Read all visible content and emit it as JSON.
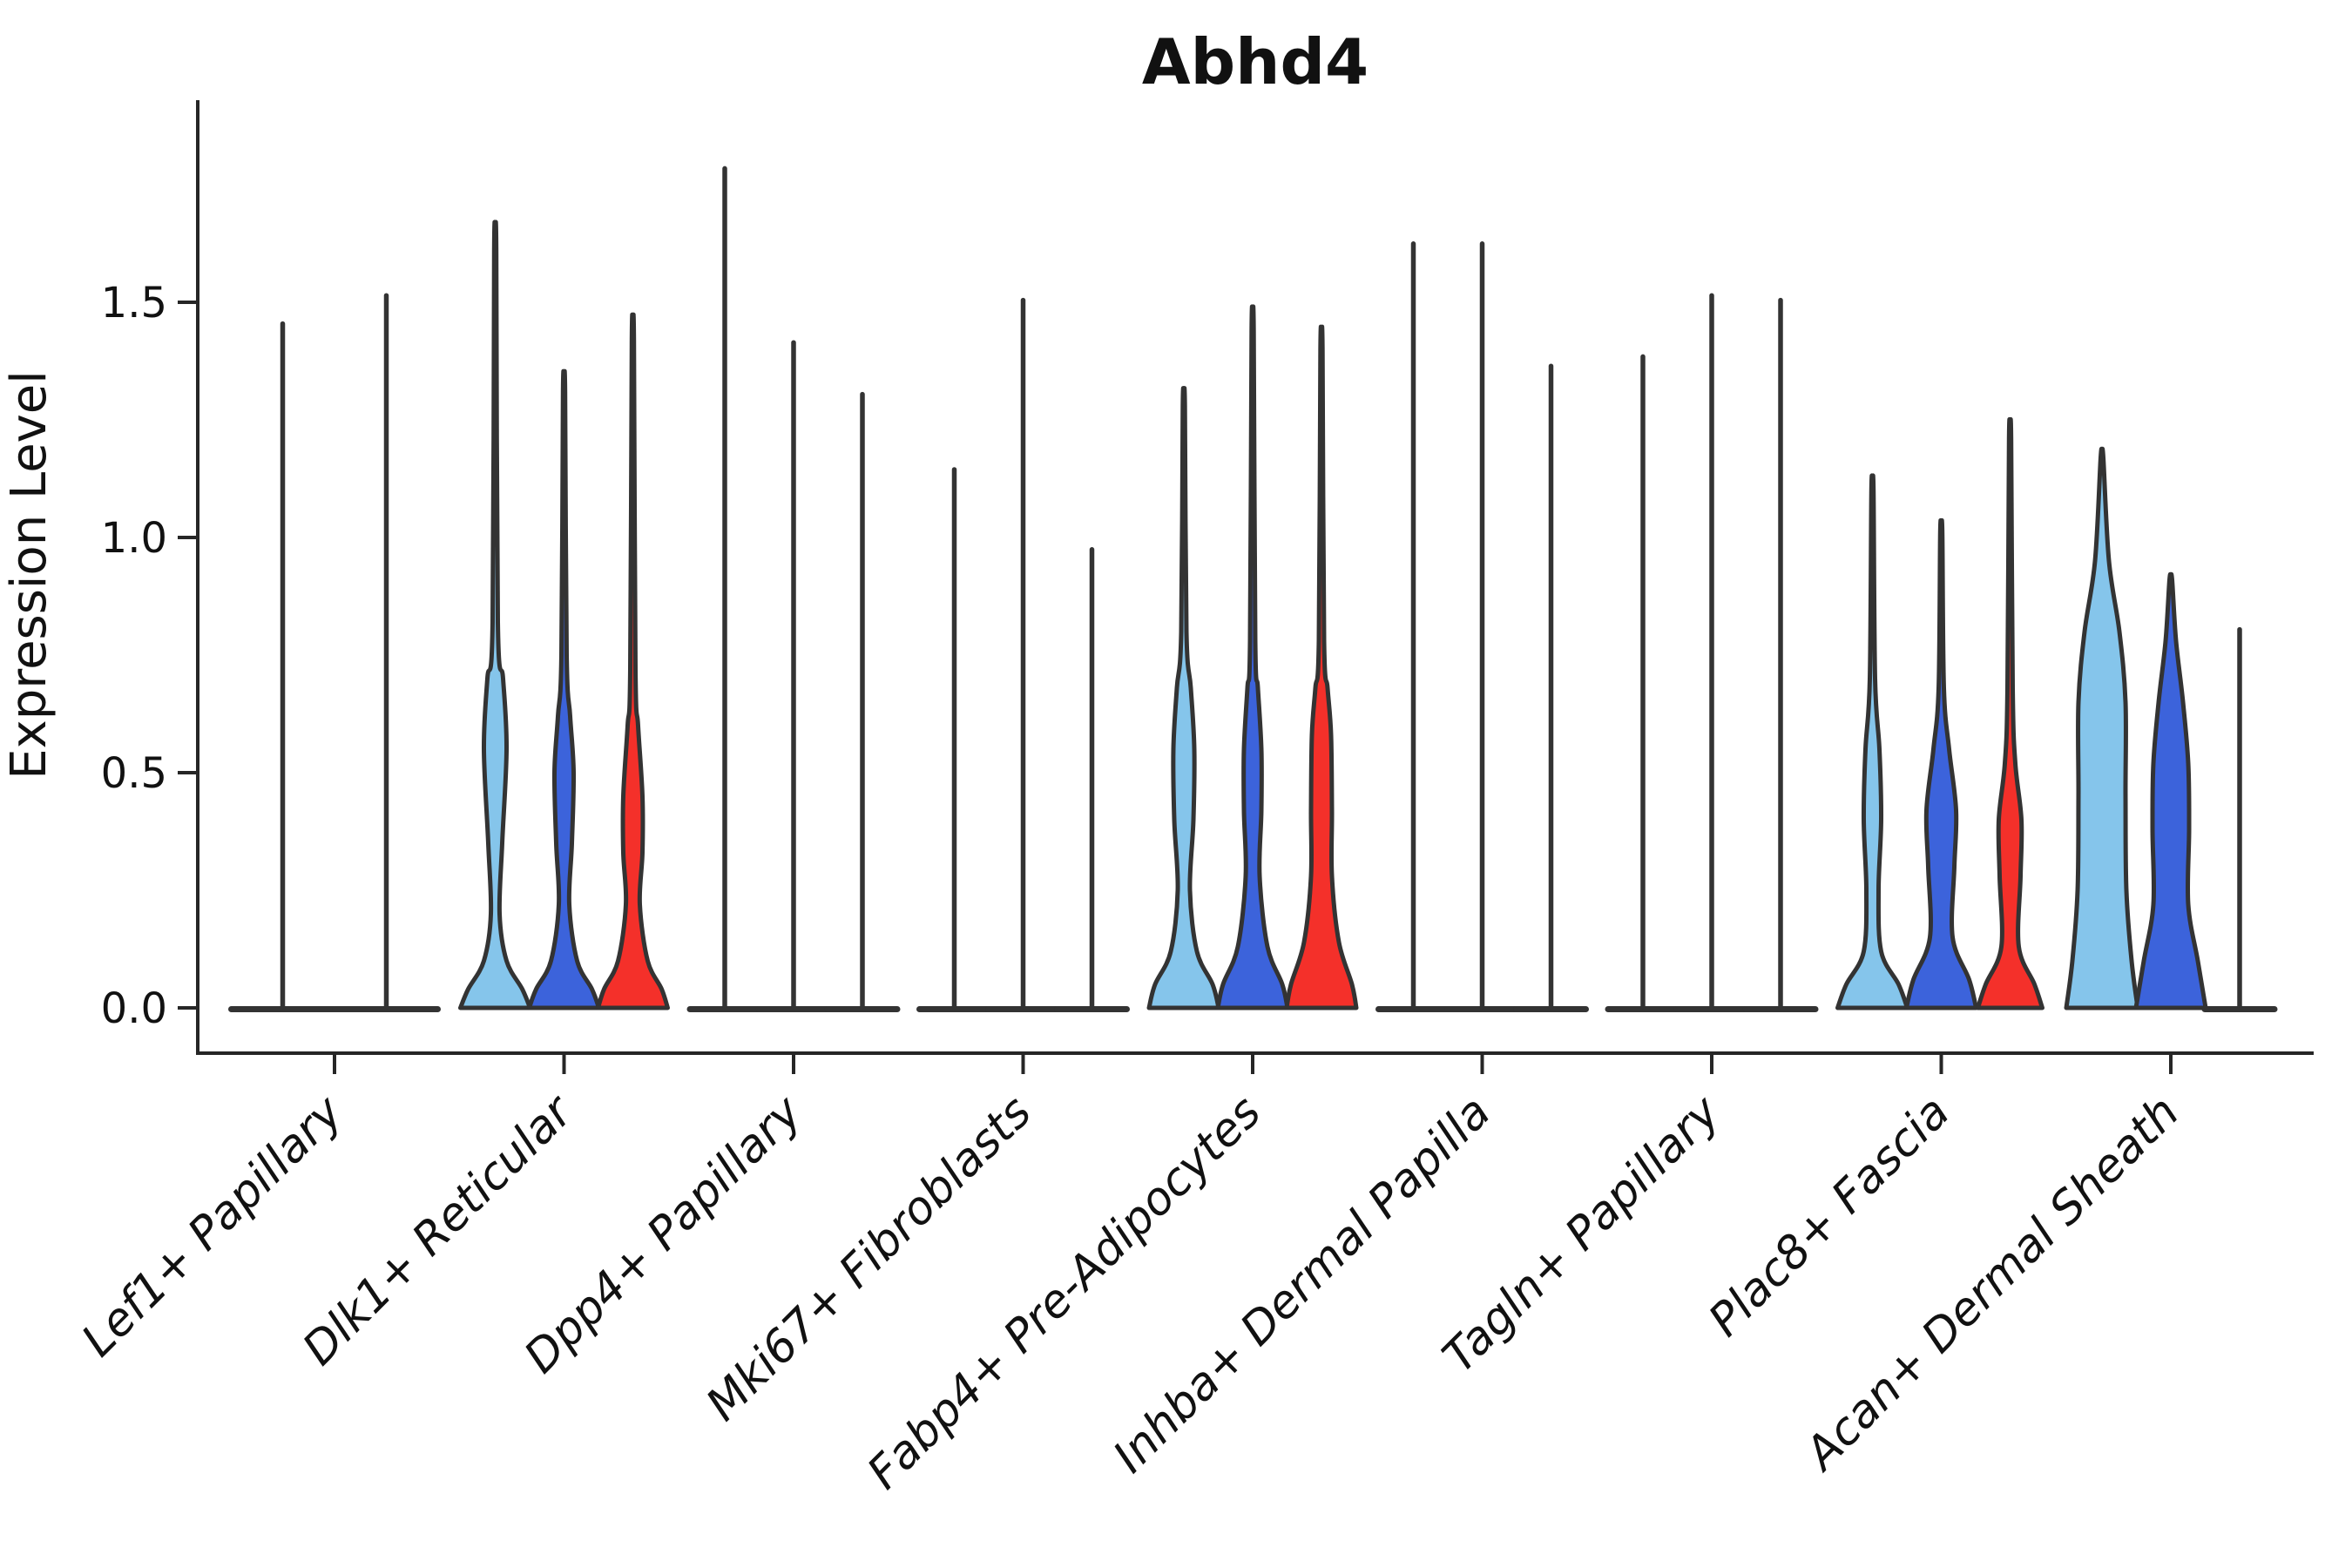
{
  "title": "Abhd4",
  "axes": {
    "ylabel": "Expression Level",
    "xlabel": "",
    "axis_color": "#262626",
    "yticks": [
      {
        "v": 0.0,
        "label": "0.0"
      },
      {
        "v": 0.5,
        "label": "0.5"
      },
      {
        "v": 1.0,
        "label": "1.0"
      },
      {
        "v": 1.5,
        "label": "1.5"
      }
    ]
  },
  "chart_data": {
    "type": "violin",
    "title": "Abhd4",
    "xlabel": "",
    "ylabel": "Expression Level",
    "ylim": [
      -0.09,
      1.93
    ],
    "yticks": [
      0,
      0.5,
      1.0,
      1.5
    ],
    "grid": false,
    "legend": "none",
    "x_label_rotation": 45,
    "x_label_style": "italic",
    "outline": "#333333",
    "palette": {
      "lightblue": "#85C5EB",
      "blue": "#3C63DB",
      "red": "#F4302A"
    },
    "note_units": "max = top of density spike in Expression Level units; profile = [expression, half-width px] density outline control points; violins with profile null collapse to a near-zero base with a thin spike",
    "categories": [
      {
        "label": "Lef1+ Papillary",
        "violins": [
          {
            "color": "lightblue",
            "max": 1.46,
            "profile": null
          },
          {
            "color": "blue",
            "max": 1.52,
            "profile": null
          }
        ]
      },
      {
        "label": "Dlk1+ Reticular",
        "violins": [
          {
            "color": "lightblue",
            "max": 1.61,
            "profile": [
              [
                0,
                40
              ],
              [
                0.04,
                31
              ],
              [
                0.1,
                13
              ],
              [
                0.2,
                5
              ],
              [
                0.35,
                8
              ],
              [
                0.55,
                13
              ],
              [
                0.7,
                9
              ],
              [
                0.82,
                3
              ],
              [
                1.61,
                1.2
              ]
            ]
          },
          {
            "color": "blue",
            "max": 1.31,
            "profile": [
              [
                0,
                40
              ],
              [
                0.04,
                32
              ],
              [
                0.1,
                15
              ],
              [
                0.22,
                6
              ],
              [
                0.35,
                9
              ],
              [
                0.5,
                11
              ],
              [
                0.62,
                7
              ],
              [
                0.75,
                3
              ],
              [
                1.31,
                1.2
              ]
            ]
          },
          {
            "color": "red",
            "max": 1.42,
            "profile": [
              [
                0,
                40
              ],
              [
                0.04,
                33
              ],
              [
                0.1,
                17
              ],
              [
                0.22,
                8
              ],
              [
                0.33,
                11
              ],
              [
                0.45,
                11
              ],
              [
                0.6,
                6
              ],
              [
                0.72,
                3
              ],
              [
                1.42,
                1.2
              ]
            ]
          }
        ]
      },
      {
        "label": "Dpp4+ Papillary",
        "violins": [
          {
            "color": "lightblue",
            "max": 1.79,
            "profile": null
          },
          {
            "color": "blue",
            "max": 1.42,
            "profile": null
          },
          {
            "color": "red",
            "max": 1.31,
            "profile": null
          }
        ]
      },
      {
        "label": "Mki67+ Fibroblasts",
        "violins": [
          {
            "color": "lightblue",
            "max": 1.15,
            "profile": null
          },
          {
            "color": "blue",
            "max": 1.51,
            "profile": null
          },
          {
            "color": "red",
            "max": 0.98,
            "profile": null
          }
        ]
      },
      {
        "label": "Fabp4+ Pre-Adipocytes",
        "violins": [
          {
            "color": "lightblue",
            "max": 1.28,
            "profile": [
              [
                0,
                40
              ],
              [
                0.05,
                33
              ],
              [
                0.12,
                15
              ],
              [
                0.25,
                7
              ],
              [
                0.4,
                11
              ],
              [
                0.55,
                12
              ],
              [
                0.68,
                8
              ],
              [
                0.8,
                3
              ],
              [
                1.28,
                1.2
              ]
            ]
          },
          {
            "color": "blue",
            "max": 1.44,
            "profile": [
              [
                0,
                40
              ],
              [
                0.05,
                34
              ],
              [
                0.13,
                17
              ],
              [
                0.28,
                8
              ],
              [
                0.42,
                10
              ],
              [
                0.55,
                10
              ],
              [
                0.68,
                6
              ],
              [
                0.78,
                3
              ],
              [
                1.44,
                1.2
              ]
            ]
          },
          {
            "color": "red",
            "max": 1.4,
            "profile": [
              [
                0,
                40
              ],
              [
                0.05,
                35
              ],
              [
                0.14,
                20
              ],
              [
                0.28,
                12
              ],
              [
                0.42,
                12
              ],
              [
                0.58,
                11
              ],
              [
                0.68,
                7
              ],
              [
                0.78,
                3
              ],
              [
                1.4,
                1.2
              ]
            ]
          }
        ]
      },
      {
        "label": "Inhba+ Dermal Papilla",
        "violins": [
          {
            "color": "lightblue",
            "max": 1.63,
            "profile": null
          },
          {
            "color": "blue",
            "max": 1.63,
            "profile": null
          },
          {
            "color": "red",
            "max": 1.37,
            "profile": null
          }
        ]
      },
      {
        "label": "Tagln+ Papillary",
        "violins": [
          {
            "color": "lightblue",
            "max": 1.39,
            "profile": null
          },
          {
            "color": "blue",
            "max": 1.52,
            "profile": null
          },
          {
            "color": "red",
            "max": 1.51,
            "profile": null
          }
        ]
      },
      {
        "label": "Plac8+ Fascia",
        "violins": [
          {
            "color": "lightblue",
            "max": 1.1,
            "profile": [
              [
                0,
                40
              ],
              [
                0.05,
                30
              ],
              [
                0.12,
                10
              ],
              [
                0.25,
                7
              ],
              [
                0.4,
                10
              ],
              [
                0.55,
                8
              ],
              [
                0.7,
                3
              ],
              [
                1.1,
                1.2
              ]
            ]
          },
          {
            "color": "blue",
            "max": 1.01,
            "profile": [
              [
                0,
                40
              ],
              [
                0.06,
                32
              ],
              [
                0.15,
                13
              ],
              [
                0.3,
                15
              ],
              [
                0.42,
                17
              ],
              [
                0.55,
                9
              ],
              [
                0.68,
                3
              ],
              [
                1.01,
                1.2
              ]
            ]
          },
          {
            "color": "red",
            "max": 1.21,
            "profile": [
              [
                0,
                37
              ],
              [
                0.05,
                28
              ],
              [
                0.13,
                10
              ],
              [
                0.28,
                12
              ],
              [
                0.4,
                13
              ],
              [
                0.52,
                6
              ],
              [
                0.68,
                3
              ],
              [
                1.21,
                1.2
              ]
            ]
          }
        ]
      },
      {
        "label": "Acan+ Dermal Sheath",
        "violins": [
          {
            "color": "lightblue",
            "max": 1.17,
            "profile": [
              [
                0,
                41
              ],
              [
                0.1,
                34
              ],
              [
                0.25,
                28
              ],
              [
                0.45,
                27
              ],
              [
                0.65,
                27
              ],
              [
                0.8,
                20
              ],
              [
                0.95,
                8
              ],
              [
                1.17,
                1.5
              ]
            ]
          },
          {
            "color": "blue",
            "max": 0.91,
            "profile": [
              [
                0,
                40
              ],
              [
                0.1,
                31
              ],
              [
                0.22,
                20
              ],
              [
                0.38,
                21
              ],
              [
                0.52,
                20
              ],
              [
                0.65,
                14
              ],
              [
                0.78,
                6
              ],
              [
                0.91,
                1.5
              ]
            ]
          },
          {
            "color": "red",
            "max": 0.81,
            "profile": null
          }
        ]
      }
    ]
  }
}
